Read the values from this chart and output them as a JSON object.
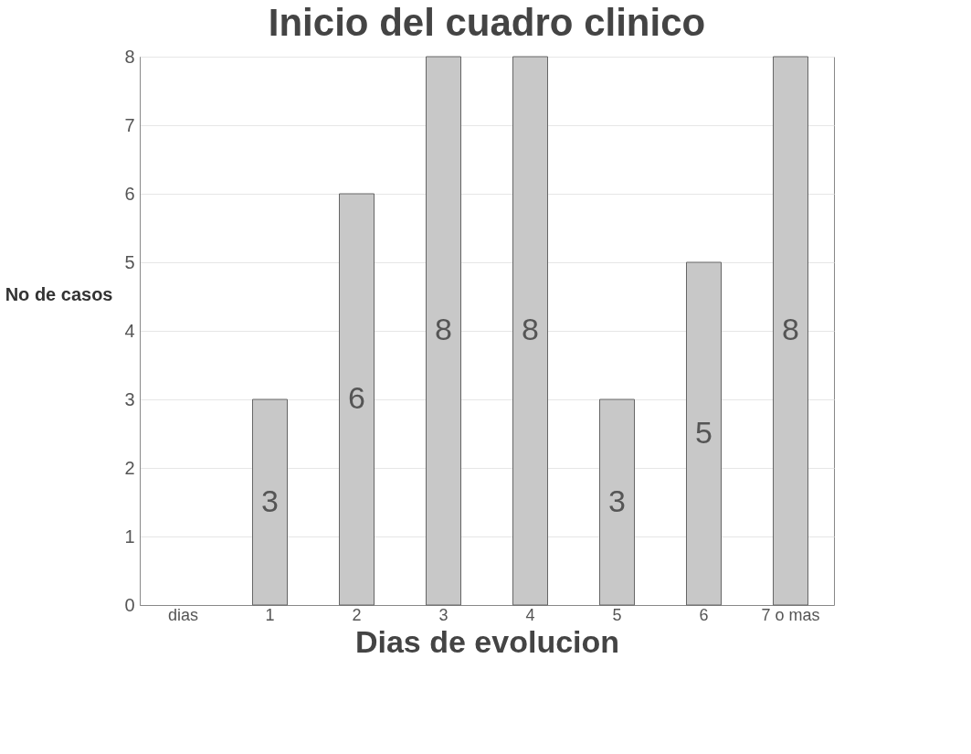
{
  "chart_data": {
    "type": "bar",
    "title": "Inicio del cuadro clinico",
    "xlabel": "Dias de evolucion",
    "ylabel": "No de casos",
    "categories": [
      "dias",
      "1",
      "2",
      "3",
      "4",
      "5",
      "6",
      "7 o mas"
    ],
    "values": [
      null,
      3,
      6,
      8,
      8,
      3,
      5,
      8
    ],
    "color": "#c8c8c8",
    "ylim": [
      0,
      8
    ],
    "yticks": [
      0,
      1,
      2,
      3,
      4,
      5,
      6,
      7,
      8
    ],
    "grid": "y",
    "data_labels": true
  }
}
